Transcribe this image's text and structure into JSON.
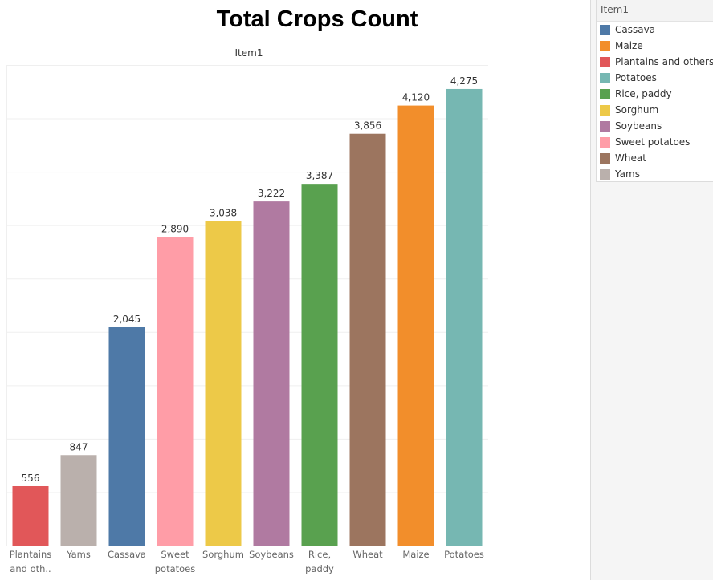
{
  "chart_data": {
    "type": "bar",
    "title": "Total Crops Count",
    "column_header": "Item1",
    "categories": [
      "Plantains and others",
      "Yams",
      "Cassava",
      "Sweet potatoes",
      "Sorghum",
      "Soybeans",
      "Rice, paddy",
      "Wheat",
      "Maize",
      "Potatoes"
    ],
    "tick_labels": [
      [
        "Plantains",
        "and oth.."
      ],
      [
        "Yams"
      ],
      [
        "Cassava"
      ],
      [
        "Sweet",
        "potatoes"
      ],
      [
        "Sorghum"
      ],
      [
        "Soybeans"
      ],
      [
        "Rice,",
        "paddy"
      ],
      [
        "Wheat"
      ],
      [
        "Maize"
      ],
      [
        "Potatoes"
      ]
    ],
    "values": [
      556,
      847,
      2045,
      2890,
      3038,
      3222,
      3387,
      3856,
      4120,
      4275
    ],
    "value_labels": [
      "556",
      "847",
      "2,045",
      "2,890",
      "3,038",
      "3,222",
      "3,387",
      "3,856",
      "4,120",
      "4,275"
    ],
    "colors": [
      "#e15759",
      "#bab0ac",
      "#4e79a7",
      "#ff9da7",
      "#edc948",
      "#b07aa1",
      "#59a14f",
      "#9c755f",
      "#f28e2b",
      "#76b7b2"
    ],
    "ylim": [
      0,
      4500
    ],
    "grid": true,
    "legend_position": "right",
    "legend": {
      "title": "Item1",
      "entries": [
        {
          "label": "Cassava",
          "color": "#4e79a7"
        },
        {
          "label": "Maize",
          "color": "#f28e2b"
        },
        {
          "label": "Plantains and others",
          "color": "#e15759"
        },
        {
          "label": "Potatoes",
          "color": "#76b7b2"
        },
        {
          "label": "Rice, paddy",
          "color": "#59a14f"
        },
        {
          "label": "Sorghum",
          "color": "#edc948"
        },
        {
          "label": "Soybeans",
          "color": "#b07aa1"
        },
        {
          "label": "Sweet potatoes",
          "color": "#ff9da7"
        },
        {
          "label": "Wheat",
          "color": "#9c755f"
        },
        {
          "label": "Yams",
          "color": "#bab0ac"
        }
      ]
    }
  }
}
